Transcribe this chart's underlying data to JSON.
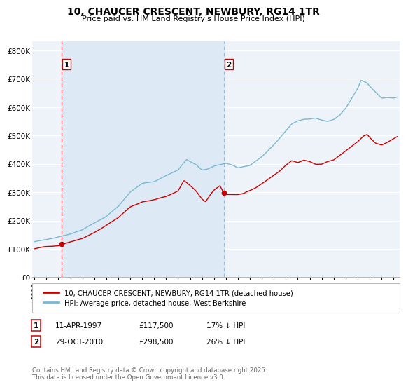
{
  "title": "10, CHAUCER CRESCENT, NEWBURY, RG14 1TR",
  "subtitle": "Price paid vs. HM Land Registry's House Price Index (HPI)",
  "ylabel_values": [
    "£0",
    "£100K",
    "£200K",
    "£300K",
    "£400K",
    "£500K",
    "£600K",
    "£700K",
    "£800K"
  ],
  "yticks": [
    0,
    100000,
    200000,
    300000,
    400000,
    500000,
    600000,
    700000,
    800000
  ],
  "ylim": [
    0,
    830000
  ],
  "xlim_start": 1994.8,
  "xlim_end": 2025.5,
  "sale1_year": 1997.27,
  "sale1_price": 117500,
  "sale1_label": "1",
  "sale2_year": 2010.83,
  "sale2_price": 298500,
  "sale2_label": "2",
  "red_line_color": "#cc0000",
  "blue_line_color": "#7ab8d4",
  "shade_color": "#ddeaf5",
  "background_color": "#edf3f8",
  "grid_color": "#ffffff",
  "legend_label_red": "10, CHAUCER CRESCENT, NEWBURY, RG14 1TR (detached house)",
  "legend_label_blue": "HPI: Average price, detached house, West Berkshire",
  "table_row1": [
    "1",
    "11-APR-1997",
    "£117,500",
    "17% ↓ HPI"
  ],
  "table_row2": [
    "2",
    "29-OCT-2010",
    "£298,500",
    "26% ↓ HPI"
  ],
  "footer": "Contains HM Land Registry data © Crown copyright and database right 2025.\nThis data is licensed under the Open Government Licence v3.0.",
  "xtick_years": [
    1995,
    1996,
    1997,
    1998,
    1999,
    2000,
    2001,
    2002,
    2003,
    2004,
    2005,
    2006,
    2007,
    2008,
    2009,
    2010,
    2011,
    2012,
    2013,
    2014,
    2015,
    2016,
    2017,
    2018,
    2019,
    2020,
    2021,
    2022,
    2023,
    2024,
    2025
  ]
}
